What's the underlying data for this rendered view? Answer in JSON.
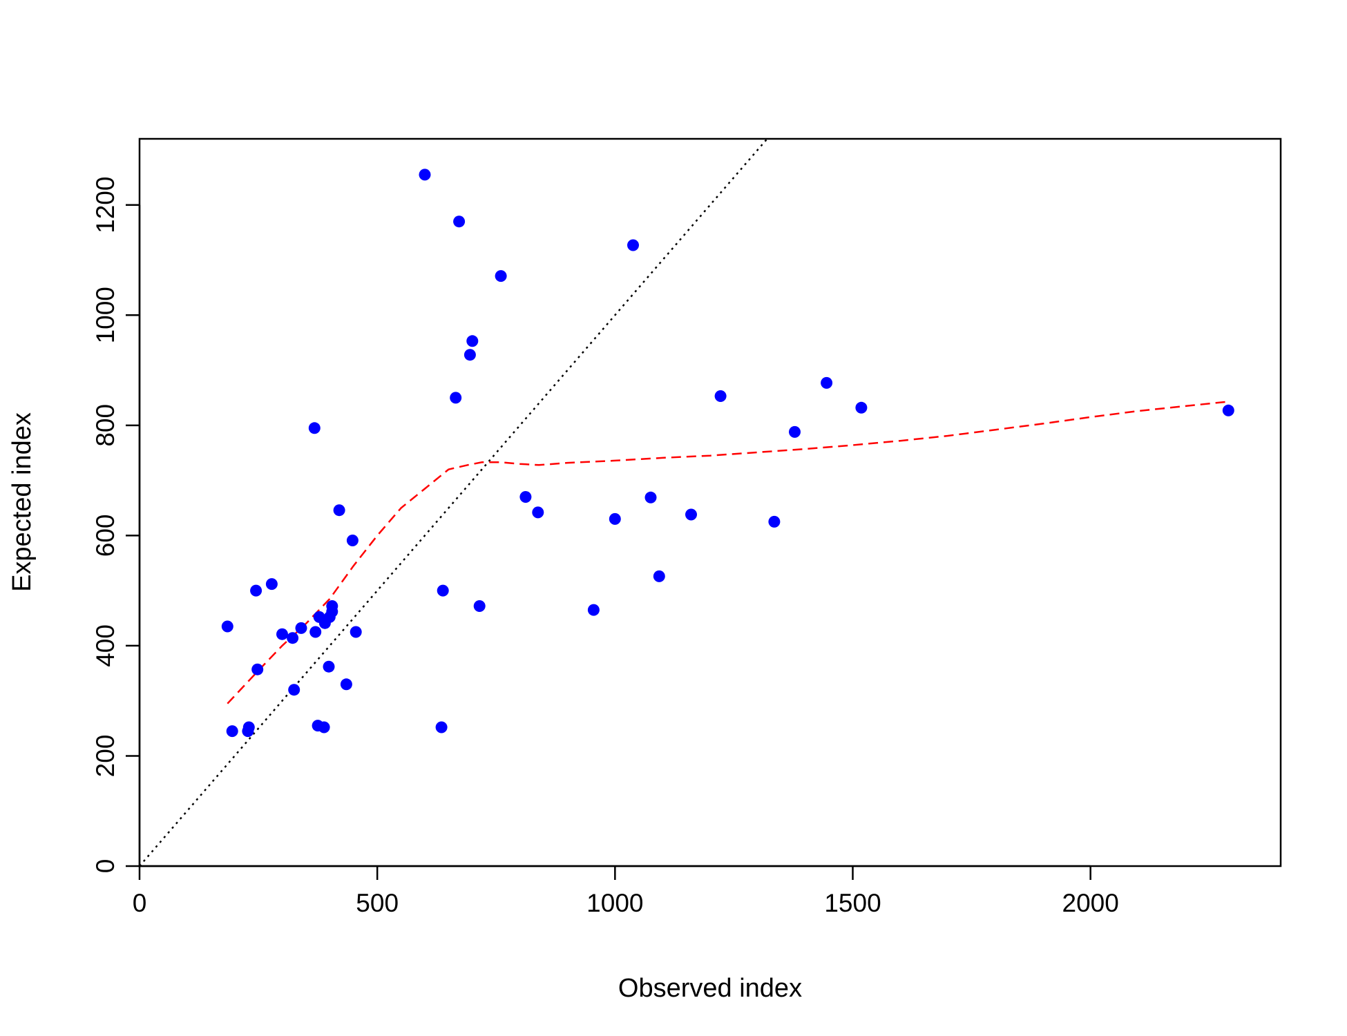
{
  "chart_data": {
    "type": "scatter",
    "title": "",
    "xlabel": "Observed index",
    "ylabel": "Expected index",
    "xlim": [
      0,
      2400
    ],
    "ylim": [
      0,
      1320
    ],
    "x_ticks": [
      0,
      500,
      1000,
      1500,
      2000
    ],
    "y_ticks": [
      0,
      200,
      400,
      600,
      800,
      1000,
      1200
    ],
    "x_tick_labels": [
      "0",
      "500",
      "1000",
      "1500",
      "2000"
    ],
    "y_tick_labels": [
      "0",
      "200",
      "400",
      "600",
      "800",
      "1000",
      "1200"
    ],
    "grid": false,
    "point_color": "#0000ff",
    "points": [
      [
        185,
        435
      ],
      [
        195,
        245
      ],
      [
        228,
        245
      ],
      [
        230,
        252
      ],
      [
        245,
        500
      ],
      [
        248,
        357
      ],
      [
        278,
        512
      ],
      [
        300,
        421
      ],
      [
        322,
        414
      ],
      [
        325,
        320
      ],
      [
        340,
        432
      ],
      [
        368,
        795
      ],
      [
        370,
        425
      ],
      [
        375,
        255
      ],
      [
        378,
        452
      ],
      [
        388,
        252
      ],
      [
        390,
        441
      ],
      [
        398,
        362
      ],
      [
        400,
        452
      ],
      [
        405,
        462
      ],
      [
        405,
        472
      ],
      [
        420,
        646
      ],
      [
        435,
        330
      ],
      [
        448,
        591
      ],
      [
        455,
        425
      ],
      [
        600,
        1255
      ],
      [
        635,
        252
      ],
      [
        638,
        500
      ],
      [
        665,
        850
      ],
      [
        672,
        1170
      ],
      [
        695,
        928
      ],
      [
        700,
        953
      ],
      [
        715,
        472
      ],
      [
        760,
        1071
      ],
      [
        812,
        670
      ],
      [
        838,
        642
      ],
      [
        955,
        465
      ],
      [
        1000,
        630
      ],
      [
        1038,
        1127
      ],
      [
        1075,
        669
      ],
      [
        1093,
        526
      ],
      [
        1160,
        638
      ],
      [
        1222,
        853
      ],
      [
        1335,
        625
      ],
      [
        1378,
        788
      ],
      [
        1445,
        877
      ],
      [
        1518,
        832
      ],
      [
        2290,
        827
      ]
    ],
    "reference_line": {
      "style": "dotted",
      "color": "#000000",
      "points": [
        [
          0,
          0
        ],
        [
          1320,
          1320
        ]
      ]
    },
    "smooth_line": {
      "style": "dashed",
      "color": "#ff0000",
      "points": [
        [
          185,
          295
        ],
        [
          250,
          355
        ],
        [
          300,
          400
        ],
        [
          350,
          440
        ],
        [
          400,
          485
        ],
        [
          450,
          545
        ],
        [
          500,
          600
        ],
        [
          550,
          650
        ],
        [
          600,
          685
        ],
        [
          650,
          720
        ],
        [
          690,
          728
        ],
        [
          720,
          733
        ],
        [
          760,
          733
        ],
        [
          800,
          730
        ],
        [
          840,
          728
        ],
        [
          900,
          732
        ],
        [
          1000,
          736
        ],
        [
          1100,
          741
        ],
        [
          1200,
          745
        ],
        [
          1300,
          751
        ],
        [
          1400,
          757
        ],
        [
          1500,
          764
        ],
        [
          1600,
          772
        ],
        [
          1700,
          781
        ],
        [
          1800,
          792
        ],
        [
          1900,
          803
        ],
        [
          2000,
          815
        ],
        [
          2100,
          826
        ],
        [
          2200,
          835
        ],
        [
          2290,
          843
        ]
      ]
    }
  }
}
